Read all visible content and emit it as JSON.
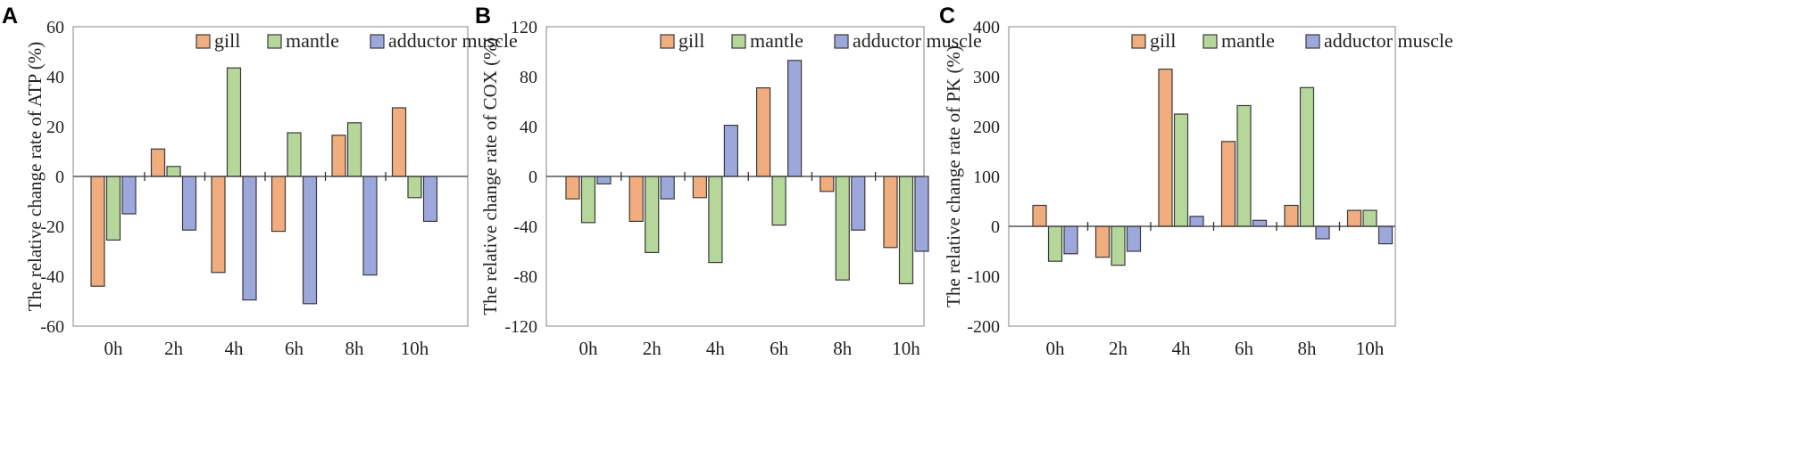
{
  "chart_data": [
    {
      "panel": "A",
      "type": "bar",
      "title": "",
      "xlabel": "",
      "ylabel": "The relative change rate of ATP (%)",
      "ylim": [
        -60,
        60
      ],
      "yticks": [
        60,
        40,
        20,
        0,
        -20,
        -40,
        -60
      ],
      "ytick_labels": [
        "60",
        "40",
        "20",
        "0",
        "-20",
        "-40",
        "-60"
      ],
      "categories": [
        "0h",
        "2h",
        "4h",
        "6h",
        "8h",
        "10h"
      ],
      "legend": [
        "gill",
        "mantle",
        "adductor muscle"
      ],
      "legend_position": "top-right",
      "series": [
        {
          "name": "gill",
          "color": "#F2AD7E",
          "values": [
            -44,
            11,
            -38.5,
            -22,
            16.5,
            27.5
          ]
        },
        {
          "name": "mantle",
          "color": "#B5D79A",
          "values": [
            -25.5,
            4,
            43.5,
            17.5,
            21.5,
            -8.5
          ]
        },
        {
          "name": "adductor muscle",
          "color": "#9CA8DC",
          "values": [
            -15,
            -21.5,
            -49.5,
            -51,
            -39.5,
            -18
          ]
        }
      ]
    },
    {
      "panel": "B",
      "type": "bar",
      "title": "",
      "xlabel": "",
      "ylabel": "The relative change rate of COX (%)",
      "ylim": [
        -120,
        120
      ],
      "yticks": [
        120,
        80,
        40,
        0,
        -40,
        -80,
        -120
      ],
      "ytick_labels": [
        "120",
        "80",
        "40",
        "0",
        "-40",
        "-80",
        "-120"
      ],
      "categories": [
        "0h",
        "2h",
        "4h",
        "6h",
        "8h",
        "10h"
      ],
      "legend": [
        "gill",
        "mantle",
        "adductor muscle"
      ],
      "legend_position": "top-right",
      "series": [
        {
          "name": "gill",
          "color": "#F2AD7E",
          "values": [
            -18,
            -36,
            -17,
            71,
            -12,
            -57
          ]
        },
        {
          "name": "mantle",
          "color": "#B5D79A",
          "values": [
            -37,
            -61,
            -69,
            -39,
            -83,
            -86
          ]
        },
        {
          "name": "adductor muscle",
          "color": "#9CA8DC",
          "values": [
            -6,
            -18,
            41,
            93,
            -43,
            -60
          ]
        }
      ]
    },
    {
      "panel": "C",
      "type": "bar",
      "title": "",
      "xlabel": "",
      "ylabel": "The relative change rate of PK (%)",
      "ylim": [
        -200,
        400
      ],
      "yticks": [
        400,
        300,
        200,
        100,
        0,
        -100,
        -200
      ],
      "ytick_labels": [
        "400",
        "300",
        "200",
        "100",
        "0",
        "-100",
        "-200"
      ],
      "categories": [
        "0h",
        "2h",
        "4h",
        "6h",
        "8h",
        "10h"
      ],
      "legend": [
        "gill",
        "mantle",
        "adductor muscle"
      ],
      "legend_position": "top-right",
      "series": [
        {
          "name": "gill",
          "color": "#F2AD7E",
          "values": [
            42,
            -62,
            315,
            170,
            42,
            32
          ]
        },
        {
          "name": "mantle",
          "color": "#B5D79A",
          "values": [
            -70,
            -78,
            225,
            242,
            278,
            32
          ]
        },
        {
          "name": "adductor muscle",
          "color": "#9CA8DC",
          "values": [
            -55,
            -50,
            20,
            12,
            -25,
            -35
          ]
        }
      ]
    }
  ]
}
